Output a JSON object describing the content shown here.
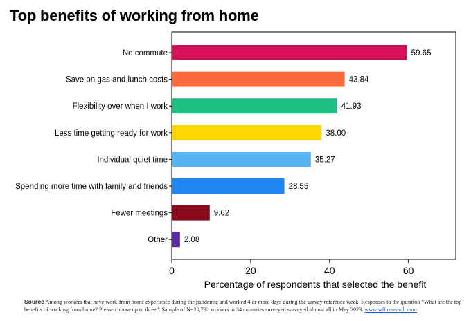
{
  "title": "Top benefits of working from home",
  "chart_data": {
    "type": "bar",
    "orientation": "horizontal",
    "categories": [
      "No commute",
      "Save on gas and lunch costs",
      "Flexibility over when I work",
      "Less time getting ready for work",
      "Individual quiet time",
      "Spending more time with family and friends",
      "Fewer meetings",
      "Other"
    ],
    "values": [
      59.65,
      43.84,
      41.93,
      38.0,
      35.27,
      28.55,
      9.62,
      2.08
    ],
    "value_labels": [
      "59.65",
      "43.84",
      "41.93",
      "38.00",
      "35.27",
      "28.55",
      "9.62",
      "2.08"
    ],
    "colors": [
      "#d81159",
      "#fb6a3a",
      "#1fbf83",
      "#fed700",
      "#56b4f5",
      "#1e88f0",
      "#8b0a1a",
      "#5b2ca0"
    ],
    "xlabel": "Percentage of respondents that selected the benefit",
    "ylabel": "",
    "xlim": [
      0,
      72
    ],
    "xticks": [
      0,
      20,
      40,
      60
    ],
    "grid": false,
    "legend": "none"
  },
  "footer": {
    "source_label": "Source",
    "text": " Among workers that have work-from home experience during the pandemic and worked 4 or more days during the survey reference week. Responses to the question “What are the top benefits of working from home? Please choose up to three”. Sample of N=20,732 workers in 34 countries surveyed surveyed almost all in May 2023. ",
    "link": "www.wfhresearch.com"
  }
}
